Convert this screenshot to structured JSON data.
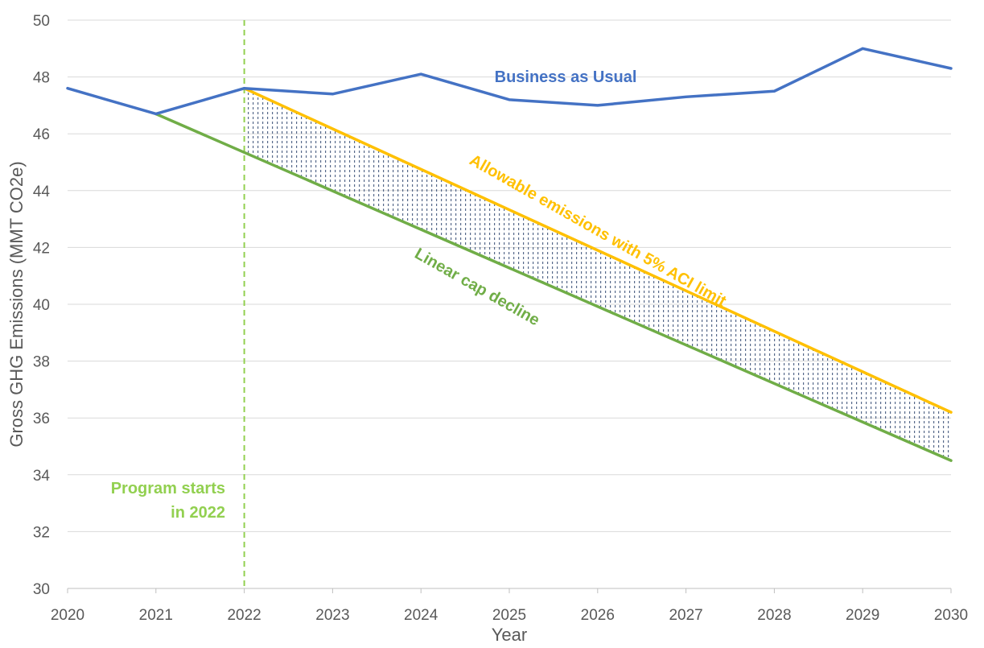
{
  "chart_data": {
    "type": "line",
    "title": "",
    "xlabel": "Year",
    "ylabel": "Gross GHG Emissions (MMT CO2e)",
    "xlim": [
      2020,
      2030
    ],
    "ylim": [
      30,
      50
    ],
    "x_ticks": [
      "2020",
      "2021",
      "2022",
      "2023",
      "2024",
      "2025",
      "2026",
      "2027",
      "2028",
      "2029",
      "2030"
    ],
    "y_ticks": [
      "30",
      "32",
      "34",
      "36",
      "38",
      "40",
      "42",
      "44",
      "46",
      "48",
      "50"
    ],
    "grid": "horizontal",
    "series": [
      {
        "name": "Business as Usual",
        "color": "#4472C4",
        "x": [
          2020,
          2021,
          2022,
          2023,
          2024,
          2025,
          2026,
          2027,
          2028,
          2029,
          2030
        ],
        "values": [
          47.6,
          46.7,
          47.6,
          47.4,
          48.1,
          47.2,
          47.0,
          47.3,
          47.5,
          49.0,
          48.3
        ]
      },
      {
        "name": "Allowable emissions with 5% ACI limit",
        "color": "#FFC000",
        "x": [
          2022,
          2030
        ],
        "values": [
          47.6,
          36.2
        ]
      },
      {
        "name": "Linear cap decline",
        "color": "#70AD47",
        "x": [
          2021,
          2030
        ],
        "values": [
          46.7,
          34.5
        ]
      }
    ],
    "shaded_region": {
      "between": [
        "Linear cap decline",
        "Allowable emissions with 5% ACI limit"
      ],
      "x": [
        2022,
        2030
      ],
      "color": "#1F3864",
      "pattern": "dotted"
    },
    "annotations": [
      {
        "text_lines": [
          "Program starts",
          "in 2022"
        ],
        "x": 2022,
        "color": "#92D050",
        "line_style": "dashed"
      }
    ]
  }
}
